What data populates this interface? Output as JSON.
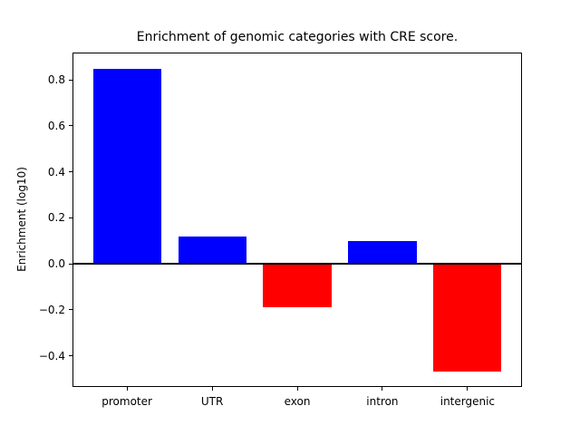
{
  "chart_data": {
    "type": "bar",
    "title": "Enrichment of genomic categories with CRE score.",
    "xlabel": "",
    "ylabel": "Enrichment (log10)",
    "categories": [
      "promoter",
      "UTR",
      "exon",
      "intron",
      "intergenic"
    ],
    "values": [
      0.85,
      0.12,
      -0.19,
      0.1,
      -0.47
    ],
    "bar_colors": [
      "#0000ff",
      "#0000ff",
      "#ff0000",
      "#0000ff",
      "#ff0000"
    ],
    "positive_color": "#0000ff",
    "negative_color": "#ff0000",
    "yticks": [
      -0.4,
      -0.2,
      0.0,
      0.2,
      0.4,
      0.6,
      0.8
    ],
    "ytick_labels": [
      "−0.4",
      "−0.2",
      "0.0",
      "0.2",
      "0.4",
      "0.6",
      "0.8"
    ],
    "ylim": [
      -0.536,
      0.919
    ],
    "grid": false,
    "zero_line": true,
    "legend": "none",
    "background_color": "#ffffff",
    "axes_color": "#000000"
  }
}
